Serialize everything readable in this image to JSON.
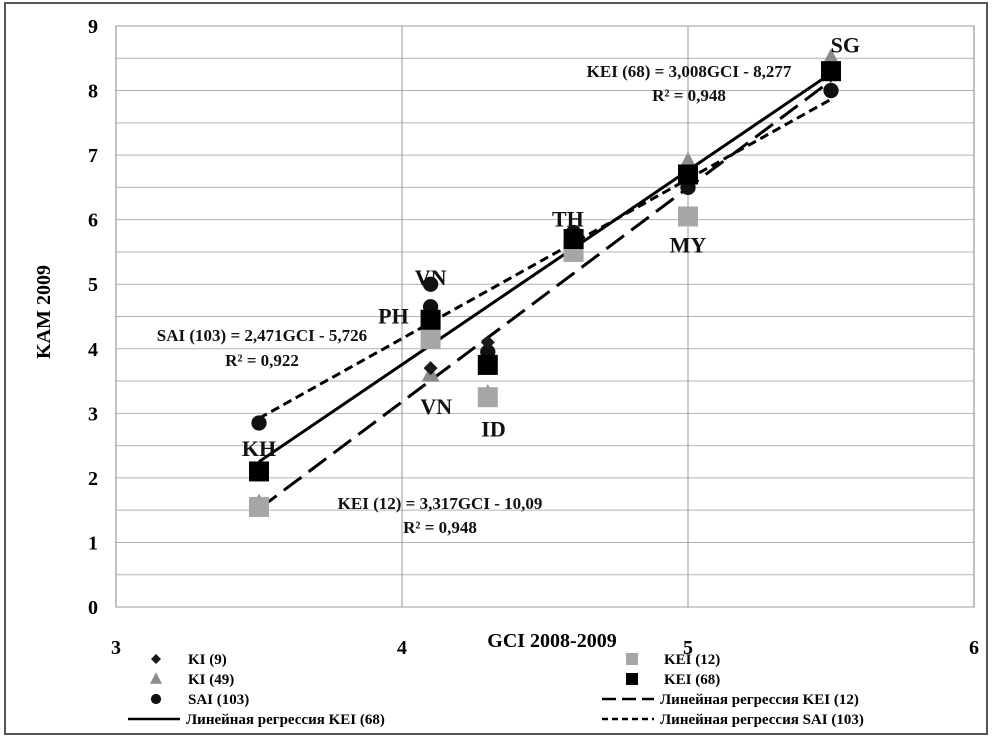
{
  "chart_data": {
    "type": "scatter",
    "xlabel": "GCI 2008-2009",
    "ylabel": "KAM 2009",
    "xlim": [
      3,
      6
    ],
    "ylim": [
      0,
      9
    ],
    "x_ticks": [
      "3",
      "4",
      "5",
      "6"
    ],
    "y_ticks": [
      "0",
      "1",
      "2",
      "3",
      "4",
      "5",
      "6",
      "7",
      "8",
      "9"
    ],
    "grid": true,
    "series": [
      {
        "name": "KI (9)",
        "marker": "diamond",
        "color": "#1a1a1a",
        "points": [
          {
            "x": 4.1,
            "y": 3.7
          },
          {
            "x": 4.3,
            "y": 4.1
          }
        ]
      },
      {
        "name": "KI (49)",
        "marker": "triangle",
        "color": "#8c8c8c",
        "points": [
          {
            "x": 3.5,
            "y": 1.6
          },
          {
            "x": 4.1,
            "y": 3.6
          },
          {
            "x": 4.3,
            "y": 3.3
          },
          {
            "x": 4.6,
            "y": 5.6
          },
          {
            "x": 5.0,
            "y": 6.9
          },
          {
            "x": 5.5,
            "y": 8.5
          }
        ]
      },
      {
        "name": "SAI (103)",
        "marker": "circle",
        "color": "#111111",
        "points": [
          {
            "x": 3.5,
            "y": 2.85
          },
          {
            "x": 4.1,
            "y": 5.0
          },
          {
            "x": 4.1,
            "y": 4.65
          },
          {
            "x": 4.3,
            "y": 3.95
          },
          {
            "x": 4.6,
            "y": 5.8
          },
          {
            "x": 5.0,
            "y": 6.5
          },
          {
            "x": 5.5,
            "y": 8.0
          }
        ]
      },
      {
        "name": "KEI (12)",
        "marker": "square",
        "color": "#a6a6a6",
        "points": [
          {
            "x": 3.5,
            "y": 1.55
          },
          {
            "x": 4.1,
            "y": 4.15
          },
          {
            "x": 4.3,
            "y": 3.25
          },
          {
            "x": 4.6,
            "y": 5.5
          },
          {
            "x": 5.0,
            "y": 6.05
          },
          {
            "x": 5.5,
            "y": 8.3
          }
        ]
      },
      {
        "name": "KEI (68)",
        "marker": "square",
        "color": "#000000",
        "points": [
          {
            "x": 3.5,
            "y": 2.1
          },
          {
            "x": 4.1,
            "y": 4.45
          },
          {
            "x": 4.3,
            "y": 3.75
          },
          {
            "x": 4.6,
            "y": 5.7
          },
          {
            "x": 5.0,
            "y": 6.7
          },
          {
            "x": 5.5,
            "y": 8.3
          }
        ]
      }
    ],
    "regressions": [
      {
        "name": "Линейная регрессия KEI (12)",
        "style": "long-dash",
        "x_range": [
          3.5,
          5.5
        ],
        "slope": 3.317,
        "intercept": -10.09
      },
      {
        "name": "Линейная регрессия KEI (68)",
        "style": "solid",
        "x_range": [
          3.5,
          5.5
        ],
        "slope": 3.008,
        "intercept": -8.277
      },
      {
        "name": "Линейная регрессия SAI (103)",
        "style": "short-dash",
        "x_range": [
          3.5,
          5.5
        ],
        "slope": 2.471,
        "intercept": -5.726
      }
    ],
    "point_labels": [
      {
        "text": "SG",
        "x": 5.55,
        "y": 8.7
      },
      {
        "text": "TH",
        "x": 4.58,
        "y": 6.0
      },
      {
        "text": "MY",
        "x": 5.0,
        "y": 5.6
      },
      {
        "text": "VN",
        "x": 4.1,
        "y": 5.1
      },
      {
        "text": "PH",
        "x": 3.97,
        "y": 4.5
      },
      {
        "text": "VN",
        "x": 4.12,
        "y": 3.1
      },
      {
        "text": "ID",
        "x": 4.32,
        "y": 2.75
      },
      {
        "text": "KH",
        "x": 3.5,
        "y": 2.45
      }
    ],
    "equations": [
      {
        "line1": "KEI (68) = 3,008GCI - 8,277",
        "line2": "R² = 0,948"
      },
      {
        "line1": "SAI (103) = 2,471GCI - 5,726",
        "line2": "R² = 0,922"
      },
      {
        "line1": "KEI (12) = 3,317GCI - 10,09",
        "line2": "R² = 0,948"
      }
    ],
    "legend": [
      {
        "label": "KI (9)",
        "symbol": "diamond"
      },
      {
        "label": "KEI (12)",
        "symbol": "square-grey"
      },
      {
        "label": "KI (49)",
        "symbol": "triangle"
      },
      {
        "label": "KEI (68)",
        "symbol": "square-black"
      },
      {
        "label": "SAI (103)",
        "symbol": "circle"
      },
      {
        "label": "Линейная регрессия KEI (12)",
        "symbol": "long-dash"
      },
      {
        "label": "Линейная регрессия KEI (68)",
        "symbol": "solid"
      },
      {
        "label": "Линейная регрессия SAI (103)",
        "symbol": "short-dash"
      }
    ],
    "legend_position": "bottom"
  }
}
